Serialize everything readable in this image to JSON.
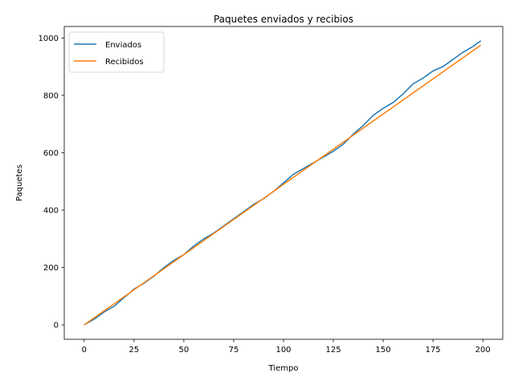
{
  "chart_data": {
    "type": "line",
    "title": "Paquetes enviados y recibios",
    "xlabel": "Tiempo",
    "ylabel": "Paquetes",
    "xlim": [
      -10,
      210
    ],
    "ylim": [
      -50,
      1040
    ],
    "x_ticks": [
      0,
      25,
      50,
      75,
      100,
      125,
      150,
      175,
      200
    ],
    "y_ticks": [
      0,
      200,
      400,
      600,
      800,
      1000
    ],
    "grid": false,
    "legend": "top-left",
    "series": [
      {
        "name": "Enviados",
        "color": "#1f77b4",
        "x": [
          0,
          5,
          10,
          15,
          20,
          25,
          30,
          35,
          40,
          45,
          50,
          55,
          60,
          65,
          70,
          75,
          80,
          85,
          90,
          95,
          100,
          105,
          110,
          115,
          120,
          125,
          130,
          135,
          140,
          145,
          150,
          155,
          160,
          165,
          170,
          175,
          180,
          185,
          190,
          195,
          199
        ],
        "y": [
          0,
          20,
          45,
          65,
          95,
          125,
          145,
          170,
          200,
          225,
          245,
          275,
          300,
          320,
          345,
          370,
          395,
          420,
          440,
          465,
          495,
          525,
          545,
          565,
          585,
          605,
          630,
          665,
          695,
          730,
          755,
          775,
          805,
          840,
          860,
          885,
          900,
          925,
          950,
          970,
          990
        ]
      },
      {
        "name": "Recibidos",
        "color": "#ff7f0e",
        "x": [
          0,
          199
        ],
        "y": [
          0,
          975
        ]
      }
    ]
  }
}
